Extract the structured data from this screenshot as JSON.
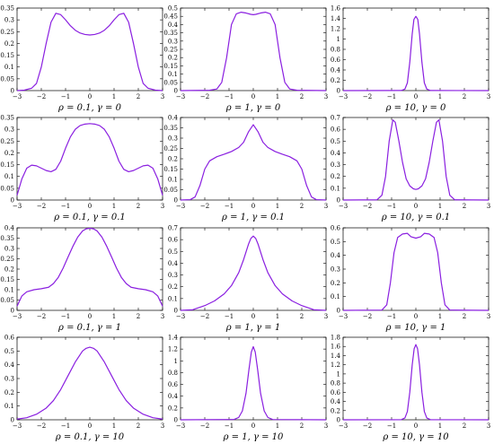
{
  "chart_data": [
    {
      "type": "line",
      "caption": "ρ = 0.1, γ = 0",
      "xlim": [
        -3,
        3
      ],
      "ylim": [
        0,
        0.35
      ],
      "xticks": [
        -3,
        -2,
        -1,
        0,
        1,
        2,
        3
      ],
      "yticks": [
        0,
        0.05,
        0.1,
        0.15,
        0.2,
        0.25,
        0.3,
        0.35
      ],
      "x": [
        -3,
        -2.7,
        -2.4,
        -2.2,
        -2,
        -1.8,
        -1.6,
        -1.4,
        -1.2,
        -1,
        -0.8,
        -0.6,
        -0.4,
        -0.2,
        0,
        0.2,
        0.4,
        0.6,
        0.8,
        1,
        1.2,
        1.4,
        1.6,
        1.8,
        2,
        2.2,
        2.4,
        2.7,
        3
      ],
      "y": [
        0,
        0.002,
        0.01,
        0.03,
        0.1,
        0.2,
        0.29,
        0.328,
        0.322,
        0.3,
        0.275,
        0.256,
        0.244,
        0.238,
        0.236,
        0.238,
        0.244,
        0.256,
        0.275,
        0.3,
        0.322,
        0.328,
        0.29,
        0.2,
        0.1,
        0.03,
        0.01,
        0.002,
        0
      ]
    },
    {
      "type": "line",
      "caption": "ρ = 1, γ = 0",
      "xlim": [
        -3,
        3
      ],
      "ylim": [
        0,
        0.5
      ],
      "xticks": [
        -3,
        -2,
        -1,
        0,
        1,
        2,
        3
      ],
      "yticks": [
        0,
        0.05,
        0.1,
        0.15,
        0.2,
        0.25,
        0.3,
        0.35,
        0.4,
        0.45,
        0.5
      ],
      "x": [
        -3,
        -1.8,
        -1.5,
        -1.3,
        -1.1,
        -0.9,
        -0.7,
        -0.5,
        -0.3,
        -0.1,
        0,
        0.1,
        0.3,
        0.5,
        0.7,
        0.9,
        1.1,
        1.3,
        1.5,
        1.8,
        3
      ],
      "y": [
        0,
        0.002,
        0.01,
        0.05,
        0.2,
        0.4,
        0.465,
        0.475,
        0.47,
        0.462,
        0.46,
        0.462,
        0.47,
        0.475,
        0.465,
        0.4,
        0.2,
        0.05,
        0.01,
        0.002,
        0
      ]
    },
    {
      "type": "line",
      "caption": "ρ = 10, γ = 0",
      "xlim": [
        -3,
        3
      ],
      "ylim": [
        0,
        1.6
      ],
      "xticks": [
        -3,
        -2,
        -1,
        0,
        1,
        2,
        3
      ],
      "yticks": [
        0,
        0.2,
        0.4,
        0.6,
        0.8,
        1,
        1.2,
        1.4,
        1.6
      ],
      "x": [
        -3,
        -0.6,
        -0.45,
        -0.35,
        -0.25,
        -0.15,
        -0.08,
        0,
        0.08,
        0.15,
        0.25,
        0.35,
        0.45,
        0.6,
        3
      ],
      "y": [
        0,
        0.002,
        0.03,
        0.15,
        0.55,
        1.1,
        1.38,
        1.44,
        1.38,
        1.1,
        0.55,
        0.15,
        0.03,
        0.002,
        0
      ]
    },
    {
      "type": "line",
      "caption": "ρ = 0.1, γ = 0.1",
      "xlim": [
        -3,
        3
      ],
      "ylim": [
        0,
        0.35
      ],
      "xticks": [
        -3,
        -2,
        -1,
        0,
        1,
        2,
        3
      ],
      "yticks": [
        0,
        0.05,
        0.1,
        0.15,
        0.2,
        0.25,
        0.3,
        0.35
      ],
      "x": [
        -3,
        -2.8,
        -2.6,
        -2.4,
        -2.2,
        -2,
        -1.8,
        -1.6,
        -1.4,
        -1.2,
        -1,
        -0.8,
        -0.6,
        -0.4,
        -0.2,
        0,
        0.2,
        0.4,
        0.6,
        0.8,
        1,
        1.2,
        1.4,
        1.6,
        1.8,
        2,
        2.2,
        2.4,
        2.6,
        2.8,
        3
      ],
      "y": [
        0.02,
        0.09,
        0.135,
        0.148,
        0.145,
        0.135,
        0.125,
        0.12,
        0.13,
        0.165,
        0.22,
        0.268,
        0.3,
        0.316,
        0.322,
        0.324,
        0.322,
        0.316,
        0.3,
        0.268,
        0.22,
        0.165,
        0.13,
        0.12,
        0.125,
        0.135,
        0.145,
        0.148,
        0.135,
        0.09,
        0.02
      ]
    },
    {
      "type": "line",
      "caption": "ρ = 1, γ = 0.1",
      "xlim": [
        -3,
        3
      ],
      "ylim": [
        0,
        0.4
      ],
      "xticks": [
        -3,
        -2,
        -1,
        0,
        1,
        2,
        3
      ],
      "yticks": [
        0,
        0.05,
        0.1,
        0.15,
        0.2,
        0.25,
        0.3,
        0.35,
        0.4
      ],
      "x": [
        -3,
        -2.6,
        -2.4,
        -2.2,
        -2,
        -1.8,
        -1.5,
        -1.2,
        -0.9,
        -0.6,
        -0.4,
        -0.2,
        0,
        0.2,
        0.4,
        0.6,
        0.9,
        1.2,
        1.5,
        1.8,
        2,
        2.2,
        2.4,
        2.6,
        3
      ],
      "y": [
        0,
        0.002,
        0.015,
        0.07,
        0.15,
        0.19,
        0.21,
        0.222,
        0.235,
        0.255,
        0.28,
        0.33,
        0.365,
        0.33,
        0.28,
        0.255,
        0.235,
        0.222,
        0.21,
        0.19,
        0.15,
        0.07,
        0.015,
        0.002,
        0
      ]
    },
    {
      "type": "line",
      "caption": "ρ = 10, γ = 0.1",
      "xlim": [
        -3,
        3
      ],
      "ylim": [
        0,
        0.7
      ],
      "xticks": [
        -3,
        -2,
        -1,
        0,
        1,
        2,
        3
      ],
      "yticks": [
        0,
        0.1,
        0.2,
        0.3,
        0.4,
        0.5,
        0.6,
        0.7
      ],
      "x": [
        -3,
        -1.6,
        -1.4,
        -1.25,
        -1.1,
        -0.95,
        -0.85,
        -0.7,
        -0.55,
        -0.4,
        -0.25,
        -0.1,
        0,
        0.1,
        0.25,
        0.4,
        0.55,
        0.7,
        0.85,
        0.95,
        1.1,
        1.25,
        1.4,
        1.6,
        3
      ],
      "y": [
        0,
        0.002,
        0.04,
        0.2,
        0.5,
        0.68,
        0.66,
        0.5,
        0.32,
        0.18,
        0.12,
        0.095,
        0.09,
        0.095,
        0.12,
        0.18,
        0.32,
        0.5,
        0.66,
        0.68,
        0.5,
        0.2,
        0.04,
        0.002,
        0
      ]
    },
    {
      "type": "line",
      "caption": "ρ = 0.1, γ = 1",
      "xlim": [
        -3,
        3
      ],
      "ylim": [
        0,
        0.4
      ],
      "xticks": [
        -3,
        -2,
        -1,
        0,
        1,
        2,
        3
      ],
      "yticks": [
        0,
        0.05,
        0.1,
        0.15,
        0.2,
        0.25,
        0.3,
        0.35,
        0.4
      ],
      "x": [
        -3,
        -2.8,
        -2.6,
        -2.3,
        -2,
        -1.7,
        -1.5,
        -1.3,
        -1.1,
        -0.9,
        -0.7,
        -0.5,
        -0.3,
        -0.15,
        0,
        0.15,
        0.3,
        0.5,
        0.7,
        0.9,
        1.1,
        1.3,
        1.5,
        1.7,
        2,
        2.3,
        2.6,
        2.8,
        3
      ],
      "y": [
        0.02,
        0.07,
        0.09,
        0.1,
        0.105,
        0.112,
        0.13,
        0.16,
        0.205,
        0.258,
        0.31,
        0.355,
        0.385,
        0.395,
        0.398,
        0.395,
        0.385,
        0.355,
        0.31,
        0.258,
        0.205,
        0.16,
        0.13,
        0.112,
        0.105,
        0.1,
        0.09,
        0.07,
        0.02
      ]
    },
    {
      "type": "line",
      "caption": "ρ = 1, γ = 1",
      "xlim": [
        -3,
        3
      ],
      "ylim": [
        0,
        0.7
      ],
      "xticks": [
        -3,
        -2,
        -1,
        0,
        1,
        2,
        3
      ],
      "yticks": [
        0,
        0.1,
        0.2,
        0.3,
        0.4,
        0.5,
        0.6,
        0.7
      ],
      "x": [
        -3,
        -2.5,
        -2,
        -1.6,
        -1.2,
        -0.9,
        -0.6,
        -0.4,
        -0.2,
        -0.1,
        0,
        0.1,
        0.2,
        0.4,
        0.6,
        0.9,
        1.2,
        1.6,
        2,
        2.5,
        3
      ],
      "y": [
        0,
        0.005,
        0.04,
        0.08,
        0.14,
        0.21,
        0.32,
        0.43,
        0.56,
        0.61,
        0.63,
        0.61,
        0.56,
        0.43,
        0.32,
        0.21,
        0.14,
        0.08,
        0.04,
        0.005,
        0
      ]
    },
    {
      "type": "line",
      "caption": "ρ = 10, γ = 1",
      "xlim": [
        -3,
        3
      ],
      "ylim": [
        0,
        0.6
      ],
      "xticks": [
        -3,
        -2,
        -1,
        0,
        1,
        2,
        3
      ],
      "yticks": [
        0,
        0.1,
        0.2,
        0.3,
        0.4,
        0.5,
        0.6
      ],
      "x": [
        -3,
        -1.4,
        -1.2,
        -1.05,
        -0.9,
        -0.75,
        -0.55,
        -0.35,
        -0.2,
        0,
        0.2,
        0.35,
        0.55,
        0.75,
        0.9,
        1.05,
        1.2,
        1.4,
        3
      ],
      "y": [
        0,
        0.002,
        0.04,
        0.2,
        0.42,
        0.53,
        0.555,
        0.56,
        0.535,
        0.525,
        0.535,
        0.56,
        0.555,
        0.53,
        0.42,
        0.2,
        0.04,
        0.002,
        0
      ]
    },
    {
      "type": "line",
      "caption": "ρ = 0.1, γ = 10",
      "xlim": [
        -3,
        3
      ],
      "ylim": [
        0,
        0.6
      ],
      "xticks": [
        -3,
        -2,
        -1,
        0,
        1,
        2,
        3
      ],
      "yticks": [
        0,
        0.1,
        0.2,
        0.3,
        0.4,
        0.5,
        0.6
      ],
      "x": [
        -3,
        -2.6,
        -2.2,
        -1.8,
        -1.5,
        -1.2,
        -0.9,
        -0.6,
        -0.3,
        -0.15,
        0,
        0.15,
        0.3,
        0.6,
        0.9,
        1.2,
        1.5,
        1.8,
        2.2,
        2.6,
        3
      ],
      "y": [
        0.005,
        0.015,
        0.04,
        0.085,
        0.14,
        0.22,
        0.32,
        0.42,
        0.5,
        0.52,
        0.528,
        0.52,
        0.5,
        0.42,
        0.32,
        0.22,
        0.14,
        0.085,
        0.04,
        0.015,
        0.005
      ]
    },
    {
      "type": "line",
      "caption": "ρ = 1, γ = 10",
      "xlim": [
        -3,
        3
      ],
      "ylim": [
        0,
        1.4
      ],
      "xticks": [
        -3,
        -2,
        -1,
        0,
        1,
        2,
        3
      ],
      "yticks": [
        0,
        0.2,
        0.4,
        0.6,
        0.8,
        1,
        1.2,
        1.4
      ],
      "x": [
        -3,
        -0.8,
        -0.6,
        -0.45,
        -0.3,
        -0.18,
        -0.08,
        0,
        0.08,
        0.18,
        0.3,
        0.45,
        0.6,
        0.8,
        3
      ],
      "y": [
        0,
        0.005,
        0.04,
        0.15,
        0.45,
        0.85,
        1.15,
        1.24,
        1.15,
        0.85,
        0.45,
        0.15,
        0.04,
        0.005,
        0
      ]
    },
    {
      "type": "line",
      "caption": "ρ = 10, γ = 10",
      "xlim": [
        -3,
        3
      ],
      "ylim": [
        0,
        1.8
      ],
      "xticks": [
        -3,
        -2,
        -1,
        0,
        1,
        2,
        3
      ],
      "yticks": [
        0,
        0.2,
        0.4,
        0.6,
        0.8,
        1,
        1.2,
        1.4,
        1.6,
        1.8
      ],
      "x": [
        -3,
        -0.6,
        -0.45,
        -0.35,
        -0.25,
        -0.15,
        -0.07,
        0,
        0.07,
        0.15,
        0.25,
        0.35,
        0.45,
        0.6,
        3
      ],
      "y": [
        0,
        0.003,
        0.04,
        0.18,
        0.6,
        1.2,
        1.55,
        1.64,
        1.55,
        1.2,
        0.6,
        0.18,
        0.04,
        0.003,
        0
      ]
    }
  ]
}
